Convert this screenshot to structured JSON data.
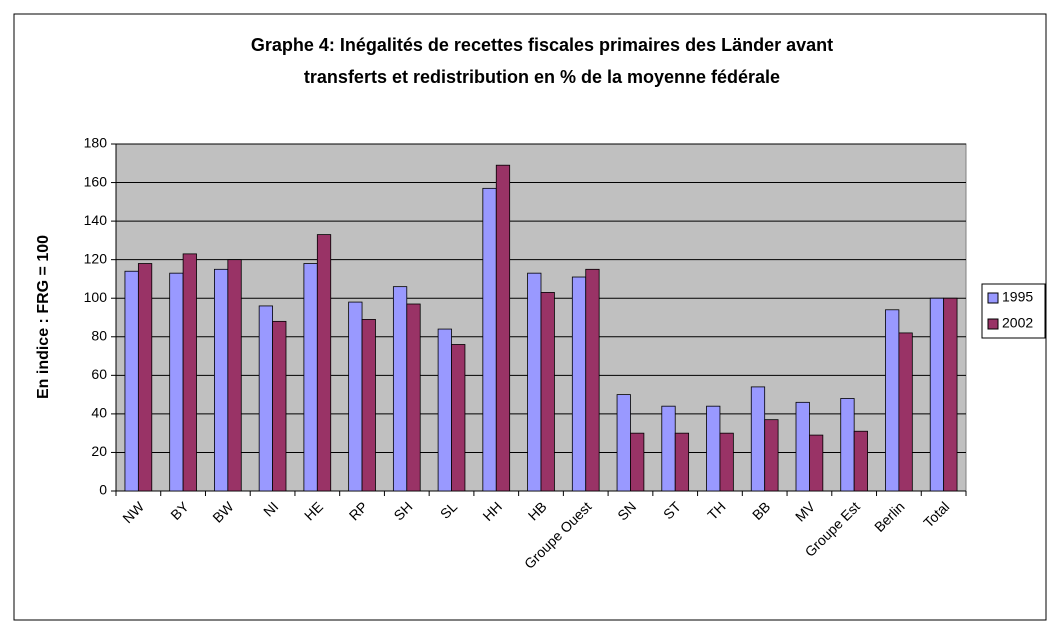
{
  "chart_data": {
    "type": "bar",
    "title": [
      "Graphe 4: Inégalités de recettes fiscales primaires des Länder avant",
      "transferts et redistribution en % de la moyenne fédérale"
    ],
    "y_label": "En indice : FRG = 100",
    "categories": [
      "NW",
      "BY",
      "BW",
      "NI",
      "HE",
      "RP",
      "SH",
      "SL",
      "HH",
      "HB",
      "Groupe Ouest",
      "SN",
      "ST",
      "TH",
      "BB",
      "MV",
      "Groupe Est",
      "Berlin",
      "Total"
    ],
    "series": [
      {
        "name": "1995",
        "color": "#9999ff",
        "values": [
          114,
          113,
          115,
          96,
          118,
          98,
          106,
          84,
          157,
          113,
          111,
          50,
          44,
          44,
          54,
          46,
          48,
          94,
          100
        ]
      },
      {
        "name": "2002",
        "color": "#993366",
        "values": [
          118,
          123,
          120,
          88,
          133,
          89,
          97,
          76,
          169,
          103,
          115,
          30,
          30,
          30,
          37,
          29,
          31,
          82,
          100
        ]
      }
    ],
    "ylim": [
      0,
      180
    ],
    "yticks": [
      0,
      20,
      40,
      60,
      80,
      100,
      120,
      140,
      160,
      180
    ],
    "grid": true,
    "legend": "right",
    "plot_background": "#c0c0c0"
  }
}
